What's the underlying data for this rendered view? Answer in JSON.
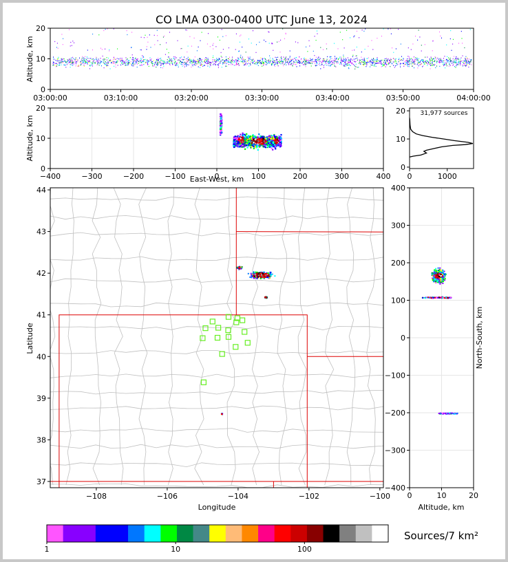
{
  "title": "CO LMA 0300-0400 UTC June 13, 2024",
  "time_height": {
    "type": "scatter",
    "ylabel": "Altitude, km",
    "ylim": [
      0,
      20
    ],
    "yticks": [
      "0",
      "10",
      "20"
    ],
    "xticks": [
      "03:00:00",
      "03:10:00",
      "03:20:00",
      "03:30:00",
      "03:40:00",
      "03:50:00",
      "04:00:00"
    ]
  },
  "ew_alt": {
    "type": "heatmap",
    "xlabel": "East-West, km",
    "ylabel": "Altitude, km",
    "xlim": [
      -400,
      400
    ],
    "ylim": [
      0,
      20
    ],
    "xticks": [
      "−400",
      "−300",
      "−200",
      "−100",
      "0",
      "100",
      "200",
      "300",
      "400"
    ],
    "yticks": [
      "0",
      "10",
      "20"
    ]
  },
  "histogram": {
    "type": "line",
    "annotation": "31,977 sources",
    "xticks": [
      "0",
      "1000"
    ],
    "yticks": [
      "0",
      "10",
      "20"
    ],
    "profile": [
      [
        0,
        3.6
      ],
      [
        100,
        3.9
      ],
      [
        300,
        4.3
      ],
      [
        450,
        5.0
      ],
      [
        380,
        5.6
      ],
      [
        450,
        6.0
      ],
      [
        650,
        6.6
      ],
      [
        850,
        7.2
      ],
      [
        1150,
        7.7
      ],
      [
        1480,
        8.0
      ],
      [
        1680,
        8.4
      ],
      [
        1550,
        8.8
      ],
      [
        1200,
        9.4
      ],
      [
        900,
        10.0
      ],
      [
        600,
        10.6
      ],
      [
        350,
        11.2
      ],
      [
        180,
        11.8
      ],
      [
        80,
        12.6
      ],
      [
        30,
        13.5
      ],
      [
        12,
        15
      ],
      [
        6,
        17
      ],
      [
        0,
        17.5
      ]
    ]
  },
  "map": {
    "type": "heatmap",
    "xlabel": "Longitude",
    "ylabel": "Latitude",
    "xlim": [
      -109.3,
      -99.9
    ],
    "ylim": [
      36.85,
      44.05
    ],
    "xticks": [
      "−108",
      "−106",
      "−104",
      "−102",
      "−100"
    ],
    "yticks": [
      "37",
      "38",
      "39",
      "40",
      "41",
      "42",
      "43",
      "44"
    ],
    "stations": [
      [
        -104.72,
        40.84
      ],
      [
        -104.27,
        40.95
      ],
      [
        -104.02,
        40.92
      ],
      [
        -103.88,
        40.87
      ],
      [
        -104.05,
        40.82
      ],
      [
        -104.92,
        40.68
      ],
      [
        -104.56,
        40.69
      ],
      [
        -104.28,
        40.63
      ],
      [
        -103.82,
        40.59
      ],
      [
        -105.0,
        40.44
      ],
      [
        -104.58,
        40.45
      ],
      [
        -104.27,
        40.47
      ],
      [
        -103.73,
        40.33
      ],
      [
        -104.07,
        40.23
      ],
      [
        -104.45,
        40.06
      ],
      [
        -104.97,
        39.38
      ]
    ]
  },
  "ns_alt": {
    "type": "heatmap",
    "xlabel": "Altitude, km",
    "ylabel": "North-South, km",
    "xlim": [
      0,
      20
    ],
    "ylim": [
      -400,
      400
    ],
    "xticks": [
      "0",
      "10",
      "20"
    ],
    "yticks": [
      "−400",
      "−300",
      "−200",
      "−100",
      "0",
      "100",
      "200",
      "300",
      "400"
    ]
  },
  "colorbar": {
    "label": "Sources/7 km²",
    "ticks": [
      "1",
      "10",
      "100"
    ],
    "colors": [
      "#ff55ff",
      "#8800ff",
      "#8800ff",
      "#0000ff",
      "#0000ff",
      "#0077ff",
      "#00ffff",
      "#00ff00",
      "#008844",
      "#448888",
      "#ffff00",
      "#ffbb77",
      "#ff8800",
      "#ff0088",
      "#ff0000",
      "#cc0000",
      "#880000",
      "#000000",
      "#808080",
      "#c0c0c0",
      "#ffffff"
    ]
  }
}
